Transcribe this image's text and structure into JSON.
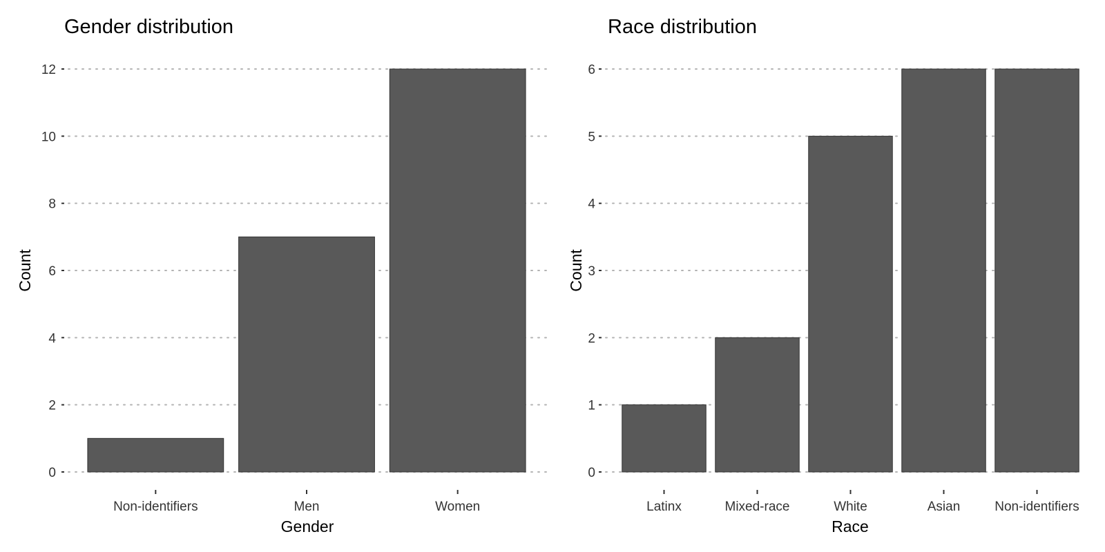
{
  "chart_data": [
    {
      "type": "bar",
      "title": "Gender distribution",
      "xlabel": "Gender",
      "ylabel": "Count",
      "categories": [
        "Non-identifiers",
        "Men",
        "Women"
      ],
      "values": [
        1,
        7,
        12
      ],
      "yticks": [
        0,
        2,
        4,
        6,
        8,
        10,
        12
      ],
      "ylim": [
        0,
        12
      ],
      "grid": "horizontal dotted",
      "bar_color": "#595959"
    },
    {
      "type": "bar",
      "title": "Race distribution",
      "xlabel": "Race",
      "ylabel": "Count",
      "categories": [
        "Latinx",
        "Mixed-race",
        "White",
        "Asian",
        "Non-identifiers"
      ],
      "values": [
        1,
        2,
        5,
        6,
        6
      ],
      "yticks": [
        0,
        1,
        2,
        3,
        4,
        5,
        6
      ],
      "ylim": [
        0,
        6
      ],
      "grid": "horizontal dotted",
      "bar_color": "#595959"
    }
  ]
}
